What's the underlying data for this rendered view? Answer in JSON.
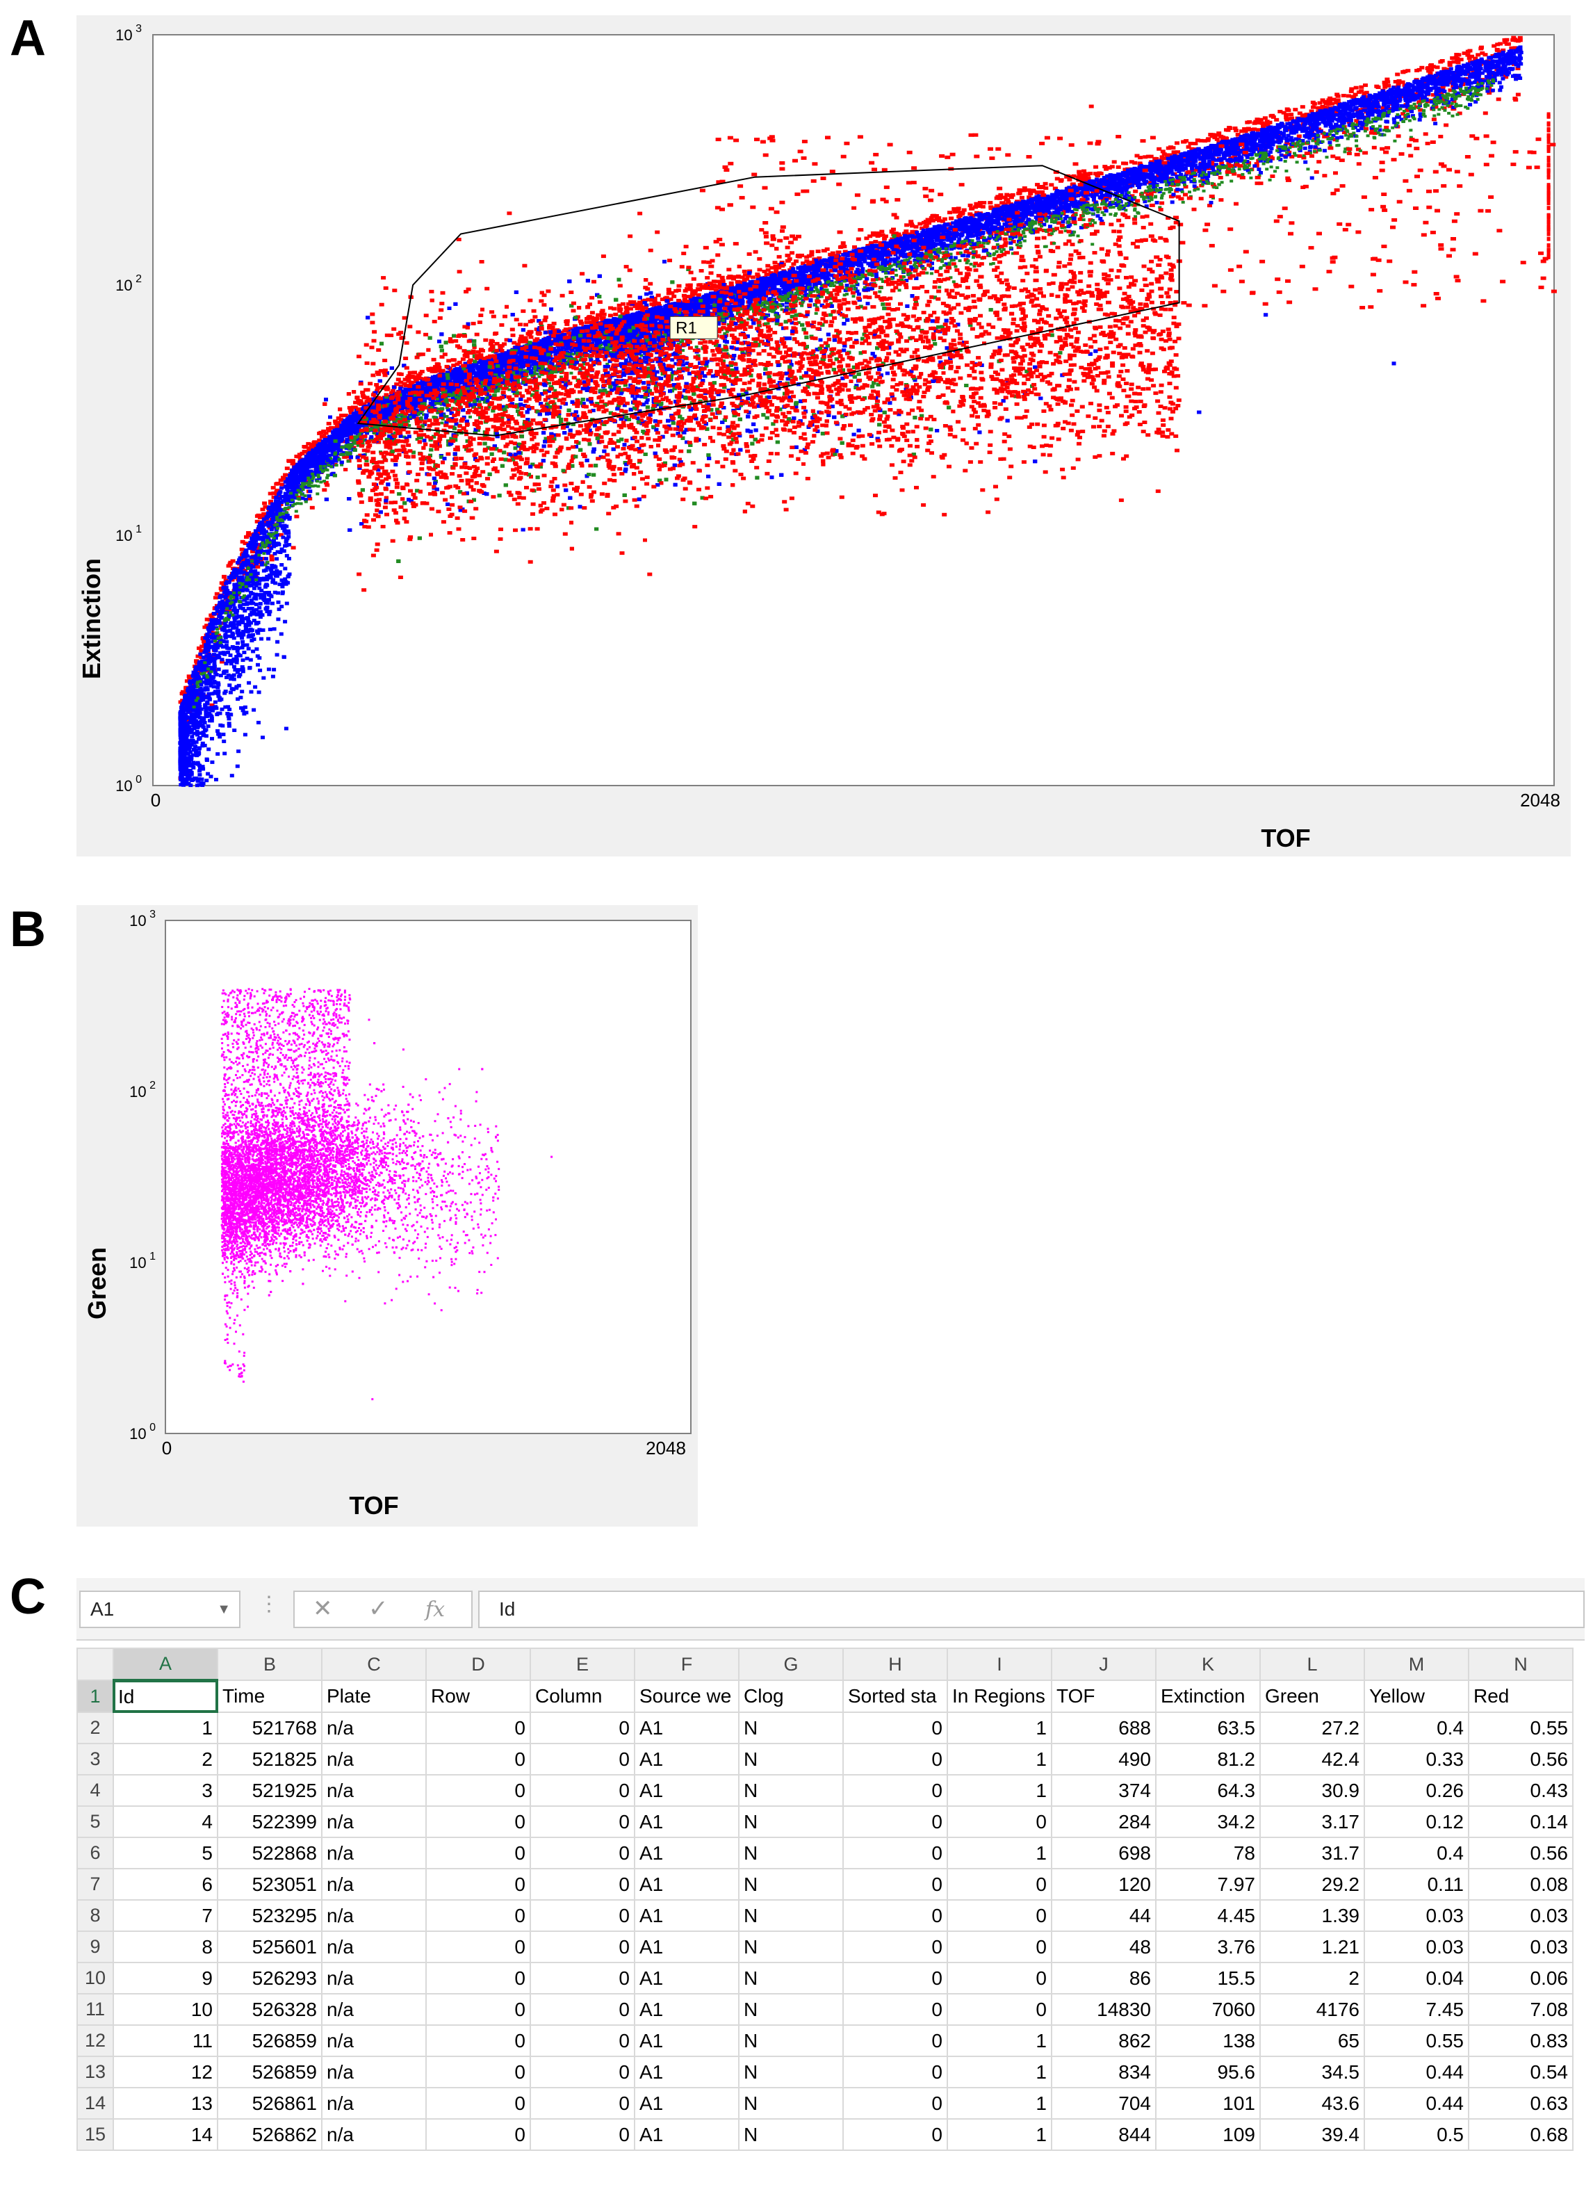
{
  "panels": {
    "a": "A",
    "b": "B",
    "c": "C"
  },
  "chart_data": [
    {
      "type": "scatter",
      "title": "",
      "xlabel": "TOF",
      "ylabel": "Extinction",
      "xlim": [
        0,
        2048
      ],
      "ylim": [
        1,
        1000
      ],
      "yscale": "log",
      "x_tick_labels": [
        "0",
        "2048"
      ],
      "y_tick_labels": [
        {
          "base": "10",
          "exp": "0",
          "value": 1
        },
        {
          "base": "10",
          "exp": "1",
          "value": 10
        },
        {
          "base": "10",
          "exp": "2",
          "value": 100
        },
        {
          "base": "10",
          "exp": "3",
          "value": 1000
        }
      ],
      "density_colors": {
        "low": "#ff0000",
        "mid": "#228b22",
        "high": "#0000ff"
      },
      "region": {
        "label": "R1",
        "polygon": [
          [
            300,
            28
          ],
          [
            360,
            48
          ],
          [
            380,
            100
          ],
          [
            450,
            160
          ],
          [
            880,
            270
          ],
          [
            1300,
            300
          ],
          [
            1500,
            180
          ],
          [
            1500,
            85
          ],
          [
            860,
            36
          ],
          [
            500,
            25
          ]
        ]
      },
      "description_points": {
        "outer_band": [
          [
            40,
            2
          ],
          [
            100,
            6
          ],
          [
            200,
            18
          ],
          [
            300,
            32
          ],
          [
            400,
            42
          ],
          [
            600,
            65
          ],
          [
            800,
            90
          ],
          [
            1200,
            190
          ],
          [
            1600,
            400
          ],
          [
            2000,
            900
          ]
        ],
        "cluster_center": [
          700,
          60
        ]
      }
    },
    {
      "type": "scatter",
      "title": "",
      "xlabel": "TOF",
      "ylabel": "Green",
      "xlim": [
        0,
        2048
      ],
      "ylim": [
        1,
        1000
      ],
      "yscale": "log",
      "x_tick_labels": [
        "0",
        "2048"
      ],
      "y_tick_labels": [
        {
          "base": "10",
          "exp": "0",
          "value": 1
        },
        {
          "base": "10",
          "exp": "1",
          "value": 10
        },
        {
          "base": "10",
          "exp": "2",
          "value": 100
        },
        {
          "base": "10",
          "exp": "3",
          "value": 1000
        }
      ],
      "point_color": "#ff00ff",
      "description_points": {
        "cluster_center": [
          500,
          25
        ],
        "x_range": [
          200,
          1400
        ],
        "y_range": [
          2,
          300
        ]
      }
    },
    {
      "type": "table",
      "name_box": "A1",
      "formula_value": "Id",
      "formula_icons": {
        "cancel": "cancel-icon",
        "enter": "check-icon",
        "function": "fx-icon"
      },
      "columns": [
        "A",
        "B",
        "C",
        "D",
        "E",
        "F",
        "G",
        "H",
        "I",
        "J",
        "K",
        "L",
        "M",
        "N"
      ],
      "header_row": [
        "Id",
        "Time",
        "Plate",
        "Row",
        "Column",
        "Source we",
        "Clog",
        "Sorted sta",
        "In Regions",
        "TOF",
        "Extinction",
        "Green",
        "Yellow",
        "Red"
      ],
      "rows": [
        [
          1,
          521768,
          "n/a",
          0,
          0,
          "A1",
          "N",
          0,
          1,
          688,
          63.5,
          27.2,
          0.4,
          0.55
        ],
        [
          2,
          521825,
          "n/a",
          0,
          0,
          "A1",
          "N",
          0,
          1,
          490,
          81.2,
          42.4,
          0.33,
          0.56
        ],
        [
          3,
          521925,
          "n/a",
          0,
          0,
          "A1",
          "N",
          0,
          1,
          374,
          64.3,
          30.9,
          0.26,
          0.43
        ],
        [
          4,
          522399,
          "n/a",
          0,
          0,
          "A1",
          "N",
          0,
          0,
          284,
          34.2,
          3.17,
          0.12,
          0.14
        ],
        [
          5,
          522868,
          "n/a",
          0,
          0,
          "A1",
          "N",
          0,
          1,
          698,
          78,
          31.7,
          0.4,
          0.56
        ],
        [
          6,
          523051,
          "n/a",
          0,
          0,
          "A1",
          "N",
          0,
          0,
          120,
          7.97,
          29.2,
          0.11,
          0.08
        ],
        [
          7,
          523295,
          "n/a",
          0,
          0,
          "A1",
          "N",
          0,
          0,
          44,
          4.45,
          1.39,
          0.03,
          0.03
        ],
        [
          8,
          525601,
          "n/a",
          0,
          0,
          "A1",
          "N",
          0,
          0,
          48,
          3.76,
          1.21,
          0.03,
          0.03
        ],
        [
          9,
          526293,
          "n/a",
          0,
          0,
          "A1",
          "N",
          0,
          0,
          86,
          15.5,
          2,
          0.04,
          0.06
        ],
        [
          10,
          526328,
          "n/a",
          0,
          0,
          "A1",
          "N",
          0,
          0,
          14830,
          7060,
          4176,
          7.45,
          7.08
        ],
        [
          11,
          526859,
          "n/a",
          0,
          0,
          "A1",
          "N",
          0,
          1,
          862,
          138,
          65,
          0.55,
          0.83
        ],
        [
          12,
          526859,
          "n/a",
          0,
          0,
          "A1",
          "N",
          0,
          1,
          834,
          95.6,
          34.5,
          0.44,
          0.54
        ],
        [
          13,
          526861,
          "n/a",
          0,
          0,
          "A1",
          "N",
          0,
          1,
          704,
          101,
          43.6,
          0.44,
          0.63
        ],
        [
          14,
          526862,
          "n/a",
          0,
          0,
          "A1",
          "N",
          0,
          1,
          844,
          109,
          39.4,
          0.5,
          0.68
        ]
      ]
    }
  ]
}
